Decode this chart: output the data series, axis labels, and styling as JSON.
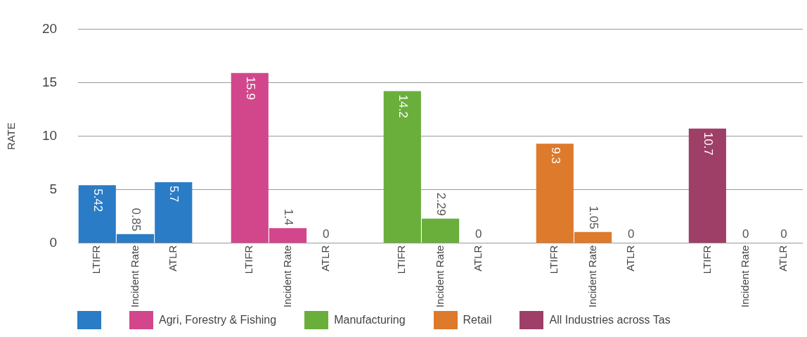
{
  "chart_data": {
    "type": "bar",
    "ylabel": "RATE",
    "categories": [
      "LTIFR",
      "Incident Rate",
      "ATLR",
      null,
      "LTIFR",
      "Incident Rate",
      "ATLR",
      null,
      "LTIFR",
      "Incident Rate",
      "ATLR",
      null,
      "LTIFR",
      "Incident Rate",
      "ATLR",
      null,
      "LTIFR",
      "Incident Rate",
      "ATLR"
    ],
    "series": [
      {
        "color": "#2a7cc6",
        "values": [
          5.42,
          0.85,
          5.7,
          null,
          null,
          null,
          null,
          null,
          null,
          null,
          null,
          null,
          null,
          null,
          null,
          null,
          null,
          null,
          null
        ]
      },
      {
        "name": "Agri, Forestry & Fishing",
        "color": "#d2478c",
        "values": [
          null,
          null,
          null,
          null,
          15.9,
          1.4,
          0,
          null,
          null,
          null,
          null,
          null,
          null,
          null,
          null,
          null,
          null,
          null,
          null
        ]
      },
      {
        "name": "Manufacturing",
        "color": "#6aae3c",
        "values": [
          null,
          null,
          null,
          null,
          null,
          null,
          null,
          null,
          14.2,
          2.29,
          0,
          null,
          null,
          null,
          null,
          null,
          null,
          null,
          null
        ]
      },
      {
        "name": "Retail",
        "color": "#dd7a2c",
        "values": [
          null,
          null,
          null,
          null,
          null,
          null,
          null,
          null,
          null,
          null,
          null,
          null,
          9.3,
          1.05,
          0,
          null,
          null,
          null,
          null
        ]
      },
      {
        "name": "All Industries across Tas",
        "color": "#9e3f68",
        "values": [
          null,
          null,
          null,
          null,
          null,
          null,
          null,
          null,
          null,
          null,
          null,
          null,
          null,
          null,
          null,
          null,
          10.7,
          0,
          0
        ]
      }
    ],
    "ylim": [
      0,
      20
    ],
    "yticks": [
      0,
      5,
      10,
      15,
      20
    ],
    "grid": "y",
    "data_labels": true,
    "legend": "bottom"
  }
}
